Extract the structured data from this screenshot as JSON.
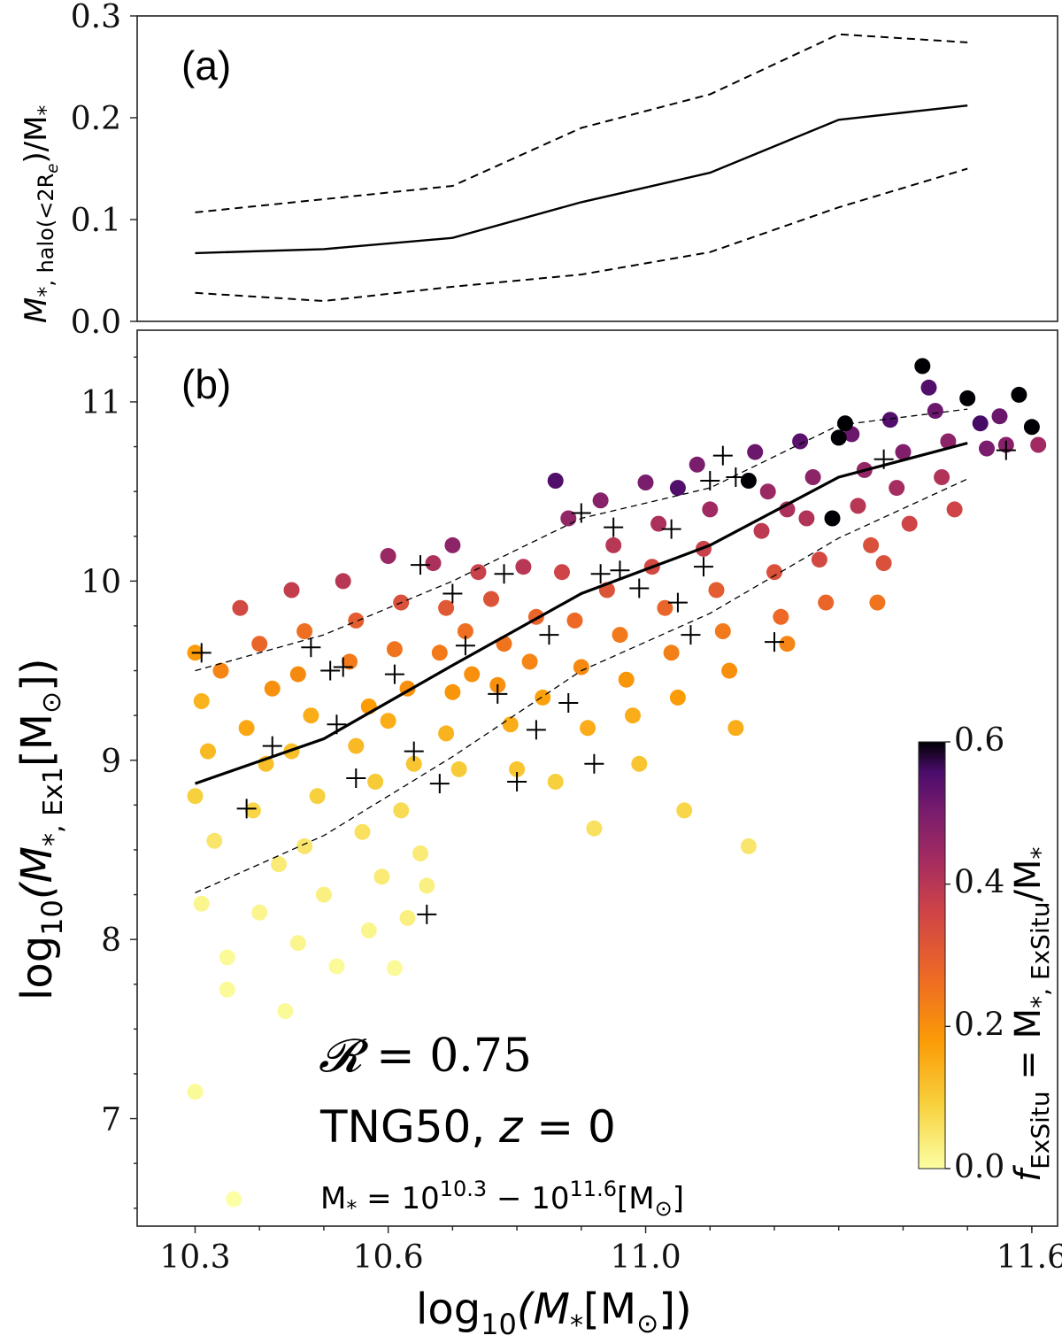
{
  "chart_data": [
    {
      "panel": "(a)",
      "type": "line",
      "ylabel_main": "M",
      "ylabel_sub": "*, halo(<2R",
      "ylabel_sub2": "e",
      "ylabel_tail": ")/M",
      "ylabel_tail_sub": "*",
      "ylim": [
        0.0,
        0.3
      ],
      "yticks": [
        "0.0",
        "0.1",
        "0.2",
        "0.3"
      ],
      "ytick_values": [
        0.0,
        0.1,
        0.2,
        0.3
      ],
      "x": [
        10.3,
        10.5,
        10.7,
        10.9,
        11.1,
        11.3,
        11.5
      ],
      "series": [
        {
          "name": "median",
          "values": [
            0.067,
            0.071,
            0.082,
            0.117,
            0.146,
            0.198,
            0.212
          ]
        },
        {
          "name": "upper",
          "values": [
            0.107,
            0.12,
            0.133,
            0.19,
            0.223,
            0.282,
            0.274
          ]
        },
        {
          "name": "lower",
          "values": [
            0.028,
            0.02,
            0.034,
            0.046,
            0.068,
            0.112,
            0.15
          ]
        }
      ]
    },
    {
      "panel": "(b)",
      "type": "scatter",
      "xlabel": "log10(M*[M⊙])",
      "xlabel_log": "log",
      "xlabel_sub": "10",
      "xlabel_rest": "(M",
      "xlabel_star": "*",
      "xlabel_unit": "[M",
      "xlabel_sun": "⊙",
      "xlabel_close": "])",
      "ylabel_log": "log",
      "ylabel_sub": "10",
      "ylabel_rest": "(M",
      "ylabel_rest_sub": "*, Ex1",
      "ylabel_unit": "[M",
      "ylabel_sun": "⊙",
      "ylabel_close": "])",
      "xlim": [
        10.21,
        11.64
      ],
      "ylim": [
        6.4,
        11.4
      ],
      "xticks": [
        "10.3",
        "10.6",
        "11.0",
        "11.6"
      ],
      "xtick_values": [
        10.3,
        10.6,
        11.0,
        11.6
      ],
      "yticks": [
        "7",
        "8",
        "9",
        "10",
        "11"
      ],
      "ytick_values": [
        7,
        8,
        9,
        10,
        11
      ],
      "x_binned": [
        10.3,
        10.5,
        10.7,
        10.9,
        11.1,
        11.3,
        11.5
      ],
      "median": [
        8.87,
        9.12,
        9.53,
        9.93,
        10.2,
        10.58,
        10.77
      ],
      "upper": [
        9.5,
        9.7,
        10.0,
        10.35,
        10.52,
        10.87,
        10.96
      ],
      "lower": [
        8.26,
        8.58,
        9.02,
        9.5,
        9.82,
        10.24,
        10.57
      ],
      "points": [
        [
          10.3,
          9.6,
          0.18
        ],
        [
          10.31,
          9.33,
          0.14
        ],
        [
          10.34,
          9.5,
          0.22
        ],
        [
          10.32,
          9.05,
          0.13
        ],
        [
          10.3,
          8.8,
          0.09
        ],
        [
          10.33,
          8.55,
          0.05
        ],
        [
          10.31,
          8.2,
          0.02
        ],
        [
          10.35,
          7.9,
          0.01
        ],
        [
          10.3,
          7.15,
          0.01
        ],
        [
          10.36,
          6.55,
          0.0
        ],
        [
          10.37,
          9.85,
          0.35
        ],
        [
          10.4,
          9.65,
          0.28
        ],
        [
          10.42,
          9.4,
          0.2
        ],
        [
          10.38,
          9.18,
          0.16
        ],
        [
          10.41,
          8.98,
          0.12
        ],
        [
          10.39,
          8.72,
          0.08
        ],
        [
          10.43,
          8.42,
          0.04
        ],
        [
          10.4,
          8.15,
          0.02
        ],
        [
          10.44,
          7.6,
          0.01
        ],
        [
          10.35,
          7.72,
          0.01
        ],
        [
          10.45,
          9.95,
          0.38
        ],
        [
          10.47,
          9.72,
          0.26
        ],
        [
          10.46,
          9.48,
          0.21
        ],
        [
          10.48,
          9.25,
          0.15
        ],
        [
          10.45,
          9.05,
          0.12
        ],
        [
          10.49,
          8.8,
          0.09
        ],
        [
          10.47,
          8.52,
          0.05
        ],
        [
          10.5,
          8.25,
          0.03
        ],
        [
          10.46,
          7.98,
          0.02
        ],
        [
          10.52,
          7.85,
          0.01
        ],
        [
          10.53,
          10.0,
          0.4
        ],
        [
          10.55,
          9.78,
          0.3
        ],
        [
          10.54,
          9.55,
          0.24
        ],
        [
          10.57,
          9.3,
          0.18
        ],
        [
          10.55,
          9.08,
          0.13
        ],
        [
          10.58,
          8.88,
          0.1
        ],
        [
          10.56,
          8.6,
          0.06
        ],
        [
          10.59,
          8.35,
          0.04
        ],
        [
          10.57,
          8.05,
          0.02
        ],
        [
          10.61,
          7.84,
          0.01
        ],
        [
          10.6,
          10.14,
          0.45
        ],
        [
          10.62,
          9.88,
          0.33
        ],
        [
          10.61,
          9.62,
          0.25
        ],
        [
          10.63,
          9.4,
          0.2
        ],
        [
          10.6,
          9.22,
          0.15
        ],
        [
          10.64,
          8.98,
          0.11
        ],
        [
          10.62,
          8.72,
          0.07
        ],
        [
          10.65,
          8.48,
          0.04
        ],
        [
          10.63,
          8.12,
          0.03
        ],
        [
          10.66,
          8.3,
          0.03
        ],
        [
          10.67,
          10.1,
          0.42
        ],
        [
          10.69,
          9.85,
          0.31
        ],
        [
          10.68,
          9.6,
          0.24
        ],
        [
          10.7,
          9.38,
          0.19
        ],
        [
          10.69,
          9.15,
          0.14
        ],
        [
          10.71,
          8.95,
          0.1
        ],
        [
          10.72,
          9.72,
          0.26
        ],
        [
          10.7,
          10.2,
          0.47
        ],
        [
          10.74,
          10.05,
          0.37
        ],
        [
          10.73,
          9.48,
          0.2
        ],
        [
          10.76,
          9.9,
          0.32
        ],
        [
          10.78,
          9.65,
          0.25
        ],
        [
          10.77,
          9.42,
          0.2
        ],
        [
          10.79,
          9.2,
          0.15
        ],
        [
          10.8,
          8.95,
          0.11
        ],
        [
          10.81,
          10.08,
          0.4
        ],
        [
          10.83,
          9.8,
          0.28
        ],
        [
          10.82,
          9.55,
          0.22
        ],
        [
          10.84,
          9.35,
          0.17
        ],
        [
          10.86,
          8.88,
          0.09
        ],
        [
          10.86,
          10.56,
          0.55
        ],
        [
          10.88,
          10.35,
          0.46
        ],
        [
          10.87,
          10.05,
          0.36
        ],
        [
          10.89,
          9.78,
          0.27
        ],
        [
          10.9,
          9.52,
          0.21
        ],
        [
          10.91,
          9.18,
          0.15
        ],
        [
          10.92,
          8.62,
          0.06
        ],
        [
          10.93,
          10.45,
          0.48
        ],
        [
          10.95,
          10.2,
          0.4
        ],
        [
          10.94,
          9.95,
          0.32
        ],
        [
          10.96,
          9.7,
          0.24
        ],
        [
          10.97,
          9.45,
          0.19
        ],
        [
          10.98,
          9.25,
          0.15
        ],
        [
          10.99,
          8.98,
          0.11
        ],
        [
          11.0,
          10.55,
          0.5
        ],
        [
          11.02,
          10.32,
          0.42
        ],
        [
          11.01,
          10.08,
          0.35
        ],
        [
          11.03,
          9.85,
          0.28
        ],
        [
          11.04,
          9.6,
          0.23
        ],
        [
          11.05,
          9.35,
          0.18
        ],
        [
          11.06,
          8.72,
          0.08
        ],
        [
          11.08,
          10.65,
          0.5
        ],
        [
          11.1,
          10.4,
          0.44
        ],
        [
          11.09,
          10.18,
          0.37
        ],
        [
          11.11,
          9.95,
          0.3
        ],
        [
          11.12,
          9.72,
          0.24
        ],
        [
          11.13,
          9.5,
          0.2
        ],
        [
          11.14,
          9.18,
          0.15
        ],
        [
          11.16,
          8.52,
          0.05
        ],
        [
          11.17,
          10.72,
          0.52
        ],
        [
          11.19,
          10.5,
          0.45
        ],
        [
          11.18,
          10.28,
          0.39
        ],
        [
          11.2,
          10.05,
          0.33
        ],
        [
          11.21,
          9.8,
          0.27
        ],
        [
          11.22,
          9.65,
          0.22
        ],
        [
          11.24,
          10.78,
          0.54
        ],
        [
          11.26,
          10.58,
          0.47
        ],
        [
          11.25,
          10.35,
          0.41
        ],
        [
          11.27,
          10.12,
          0.35
        ],
        [
          11.28,
          9.88,
          0.28
        ],
        [
          11.32,
          10.82,
          0.52
        ],
        [
          11.34,
          10.62,
          0.46
        ],
        [
          11.33,
          10.42,
          0.4
        ],
        [
          11.35,
          10.2,
          0.33
        ],
        [
          11.36,
          9.88,
          0.25
        ],
        [
          11.38,
          10.9,
          0.55
        ],
        [
          11.4,
          10.72,
          0.49
        ],
        [
          11.39,
          10.52,
          0.43
        ],
        [
          11.41,
          10.32,
          0.36
        ],
        [
          11.43,
          11.2,
          0.6
        ],
        [
          11.45,
          10.95,
          0.52
        ],
        [
          11.47,
          10.78,
          0.47
        ],
        [
          11.46,
          10.58,
          0.41
        ],
        [
          11.48,
          10.4,
          0.36
        ],
        [
          11.5,
          11.02,
          0.6
        ],
        [
          11.52,
          10.88,
          0.56
        ],
        [
          11.53,
          10.74,
          0.5
        ],
        [
          11.55,
          10.92,
          0.52
        ],
        [
          11.56,
          10.76,
          0.48
        ],
        [
          11.58,
          11.04,
          0.6
        ],
        [
          11.6,
          10.86,
          0.6
        ],
        [
          11.61,
          10.76,
          0.44
        ],
        [
          11.44,
          11.08,
          0.55
        ],
        [
          11.37,
          10.1,
          0.33
        ],
        [
          11.29,
          10.35,
          0.6
        ],
        [
          11.3,
          10.8,
          0.6
        ],
        [
          11.31,
          10.88,
          0.6
        ],
        [
          11.16,
          10.56,
          0.6
        ],
        [
          11.05,
          10.52,
          0.55
        ],
        [
          11.22,
          10.4,
          0.42
        ]
      ],
      "crosses": [
        [
          10.31,
          9.6
        ],
        [
          10.38,
          8.73
        ],
        [
          10.42,
          9.08
        ],
        [
          10.48,
          9.63
        ],
        [
          10.51,
          9.5
        ],
        [
          10.52,
          9.2
        ],
        [
          10.53,
          9.52
        ],
        [
          10.55,
          8.9
        ],
        [
          10.61,
          9.48
        ],
        [
          10.64,
          9.05
        ],
        [
          10.65,
          10.09
        ],
        [
          10.66,
          8.14
        ],
        [
          10.68,
          8.87
        ],
        [
          10.7,
          9.93
        ],
        [
          10.72,
          9.64
        ],
        [
          10.77,
          9.37
        ],
        [
          10.78,
          10.04
        ],
        [
          10.8,
          8.88
        ],
        [
          10.83,
          9.17
        ],
        [
          10.85,
          9.7
        ],
        [
          10.88,
          9.32
        ],
        [
          10.9,
          10.38
        ],
        [
          10.92,
          8.98
        ],
        [
          10.93,
          10.04
        ],
        [
          10.95,
          10.3
        ],
        [
          10.96,
          10.06
        ],
        [
          10.99,
          9.96
        ],
        [
          11.04,
          10.29
        ],
        [
          11.05,
          9.88
        ],
        [
          11.07,
          9.7
        ],
        [
          11.09,
          10.08
        ],
        [
          11.1,
          10.56
        ],
        [
          11.12,
          10.7
        ],
        [
          11.14,
          10.58
        ],
        [
          11.2,
          9.66
        ],
        [
          11.37,
          10.68
        ],
        [
          11.56,
          10.73
        ]
      ],
      "annotations": {
        "r_symbol": "𝓡",
        "r_value": " = 0.75",
        "sim_text": "TNG50, ",
        "sim_z": "z",
        "sim_z_val": " = 0",
        "range_m": "M",
        "range_star": "*",
        "range_eq": " = 10",
        "range_exp1": "10.3",
        "range_mid": " − 10",
        "range_exp2": "11.6",
        "range_unit": "[M",
        "range_sun": "⊙",
        "range_close": "]"
      },
      "colorbar": {
        "label_f": "f",
        "label_sub": "ExSitu",
        "label_eq": " = M",
        "label_eq_sub": "*, ExSitu",
        "label_tail": "/M",
        "label_tail_sub": "*",
        "ticks": [
          "0.0",
          "0.2",
          "0.4",
          "0.6"
        ],
        "tick_values": [
          0.0,
          0.2,
          0.4,
          0.6
        ],
        "range": [
          0.0,
          0.6
        ],
        "colormap": "inferno_r"
      }
    }
  ]
}
